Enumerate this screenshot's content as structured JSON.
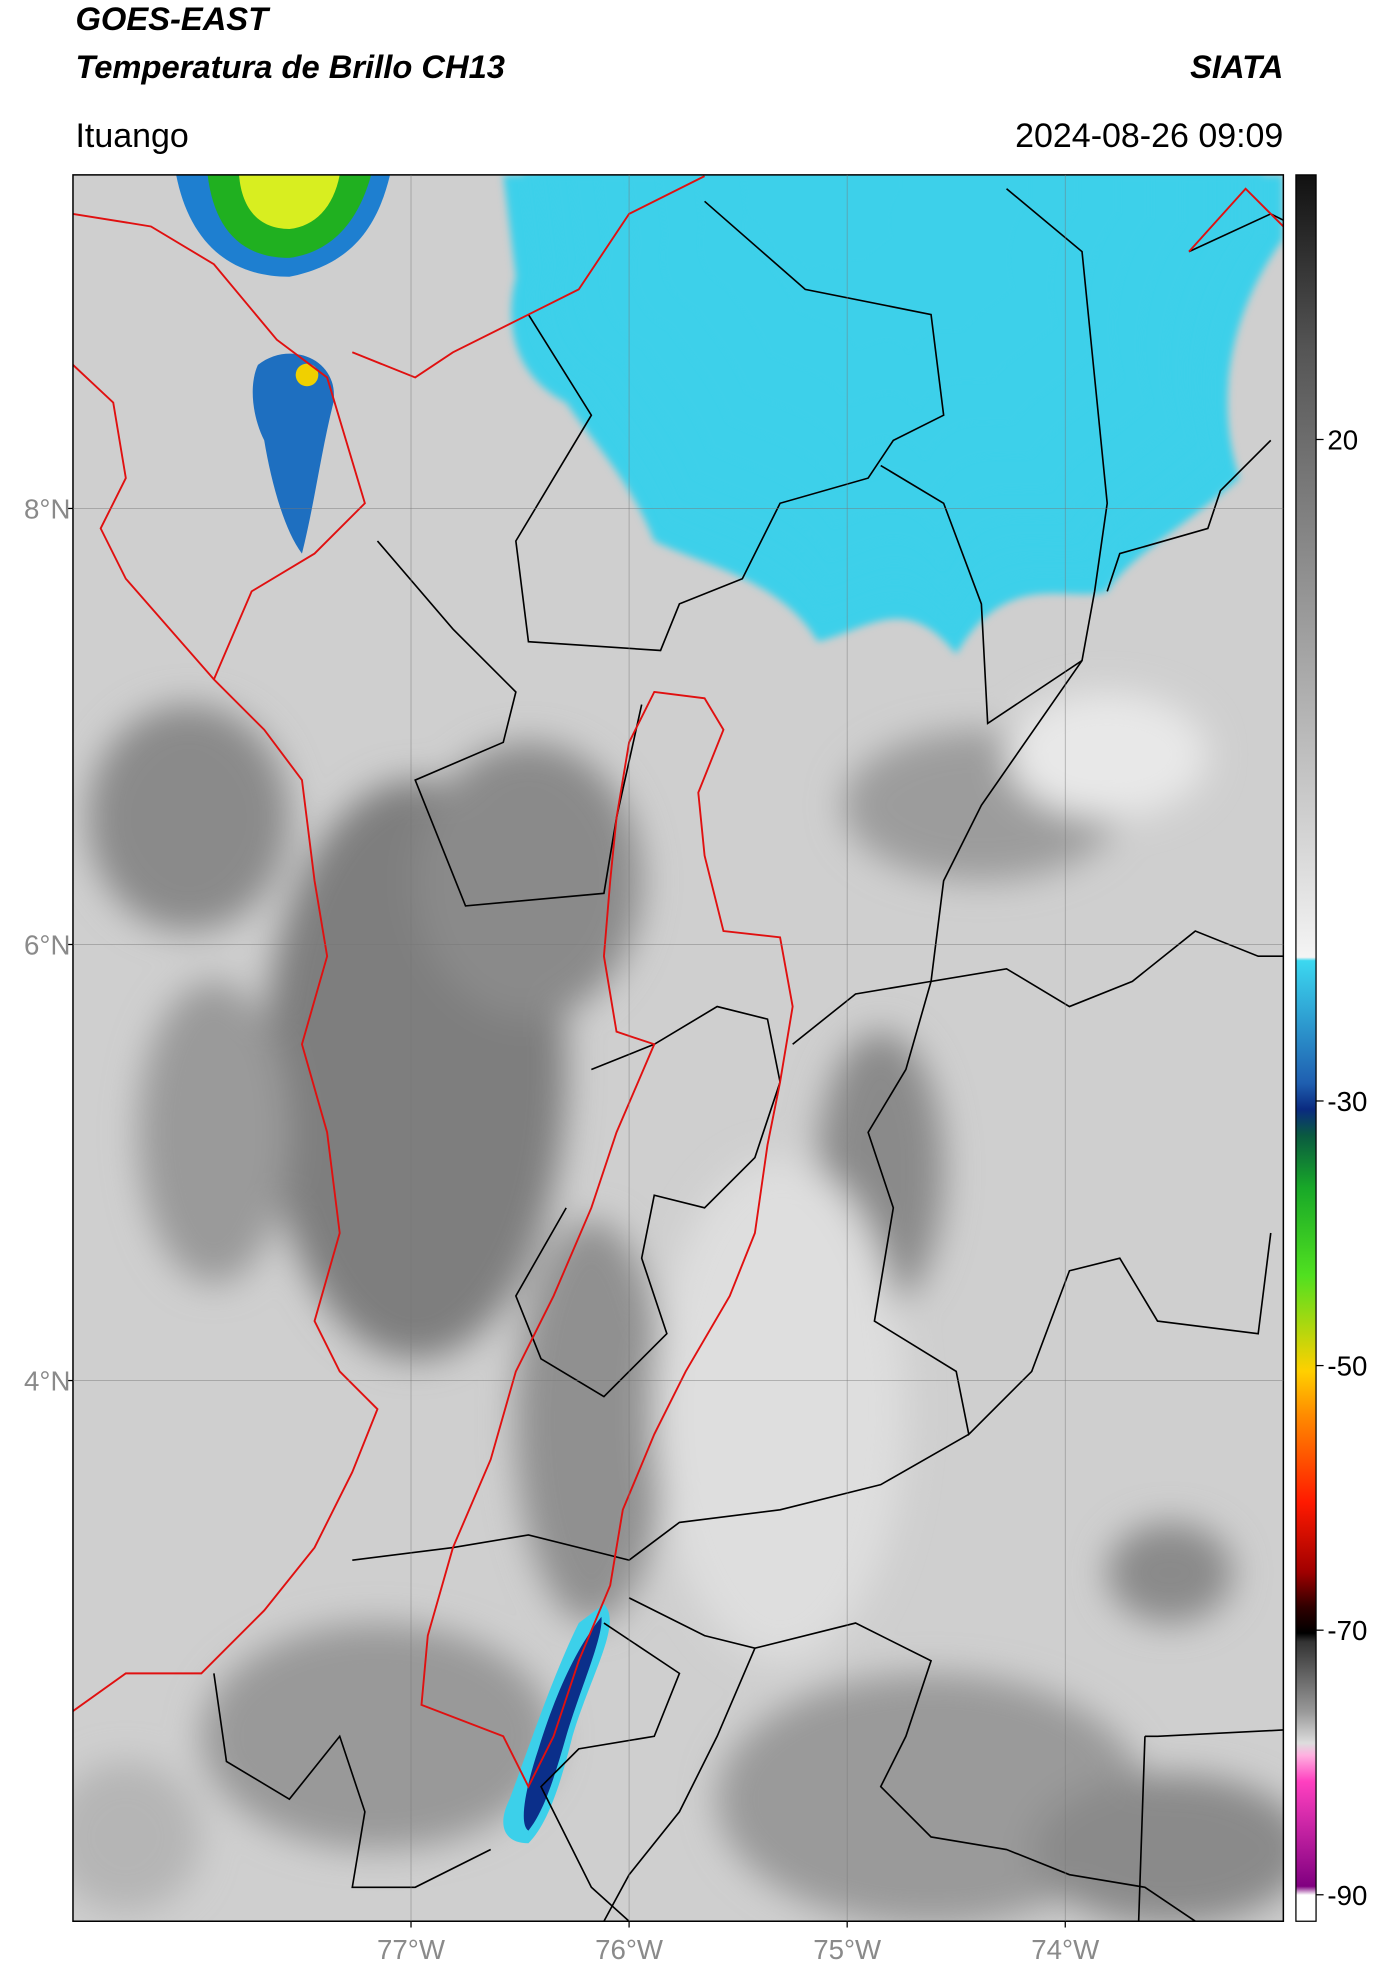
{
  "header": {
    "title": "GOES-EAST",
    "subtitle": "Temperatura de Brillo CH13",
    "source": "SIATA",
    "location": "Ituango",
    "datetime": "2024-08-26 09:09"
  },
  "map": {
    "xlim": [
      -78.55,
      -73
    ],
    "ylim": [
      1.52,
      9.53
    ],
    "xticks": [
      {
        "value": -77,
        "label": "77°W"
      },
      {
        "value": -76,
        "label": "76°W"
      },
      {
        "value": -75,
        "label": "75°W"
      },
      {
        "value": -74,
        "label": "74°W"
      }
    ],
    "yticks": [
      {
        "value": 8,
        "label": "8°N"
      },
      {
        "value": 6,
        "label": "6°N"
      },
      {
        "value": 4,
        "label": "4°N"
      }
    ],
    "grid": true
  },
  "colorbar": {
    "lim": [
      -92,
      40
    ],
    "ticks": [
      20,
      -30,
      -50,
      -70,
      -90
    ]
  }
}
